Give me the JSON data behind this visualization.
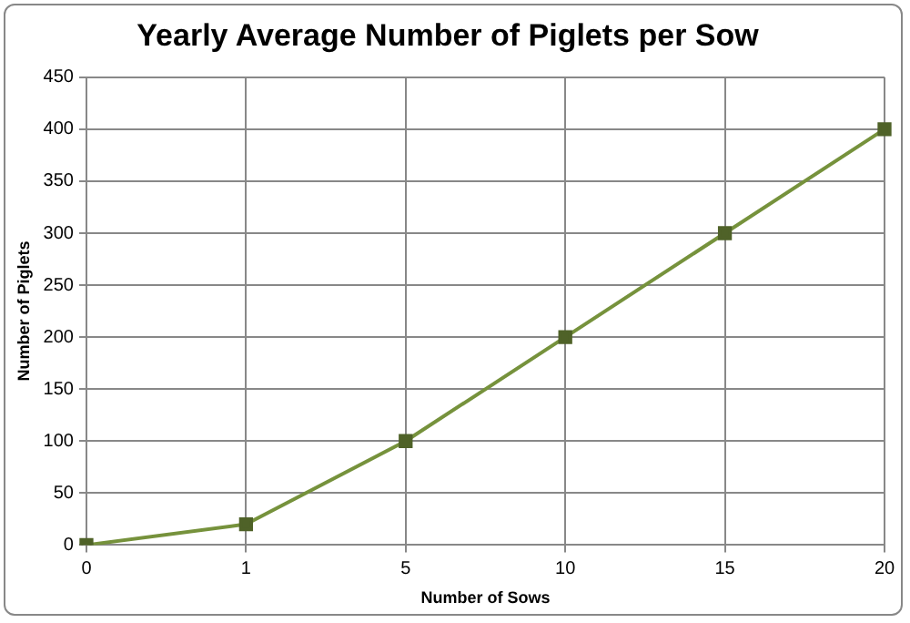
{
  "chart_data": {
    "type": "line",
    "title": "Yearly Average Number of Piglets per Sow",
    "xlabel": "Number of Sows",
    "ylabel": "Number of Piglets",
    "categories": [
      "0",
      "1",
      "5",
      "10",
      "15",
      "20"
    ],
    "series": [
      {
        "color": "#76923c",
        "values": [
          0,
          20,
          100,
          200,
          300,
          400
        ]
      }
    ],
    "ylim": [
      0,
      450
    ],
    "yticks": [
      0,
      50,
      100,
      150,
      200,
      250,
      300,
      350,
      400,
      450
    ],
    "grid": true,
    "legend": false,
    "marker": "square",
    "line_style": "solid"
  }
}
